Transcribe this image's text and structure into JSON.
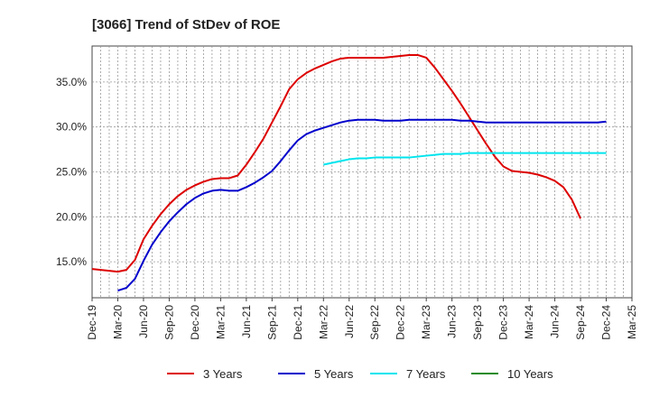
{
  "chart_data": {
    "type": "line",
    "title": "[3066]  Trend of StDev of ROE",
    "xlabel": "",
    "ylabel": "",
    "x_ticks": [
      "Dec-19",
      "Mar-20",
      "Jun-20",
      "Sep-20",
      "Dec-20",
      "Mar-21",
      "Jun-21",
      "Sep-21",
      "Dec-21",
      "Mar-22",
      "Jun-22",
      "Sep-22",
      "Dec-22",
      "Mar-23",
      "Jun-23",
      "Sep-23",
      "Dec-23",
      "Mar-24",
      "Jun-24",
      "Sep-24",
      "Dec-24",
      "Mar-25"
    ],
    "y_ticks": [
      "15.0%",
      "20.0%",
      "25.0%",
      "30.0%",
      "35.0%"
    ],
    "y_tick_values": [
      15,
      20,
      25,
      30,
      35
    ],
    "ylim": [
      11,
      39
    ],
    "x_range": [
      "Dec-19",
      "Mar-25"
    ],
    "grid": true,
    "legend_position": "bottom",
    "series": [
      {
        "name": "3 Years",
        "color": "#dd0000",
        "x": [
          "Dec-19",
          "Jan-20",
          "Feb-20",
          "Mar-20",
          "Apr-20",
          "May-20",
          "Jun-20",
          "Jul-20",
          "Aug-20",
          "Sep-20",
          "Oct-20",
          "Nov-20",
          "Dec-20",
          "Jan-21",
          "Feb-21",
          "Mar-21",
          "Apr-21",
          "May-21",
          "Jun-21",
          "Jul-21",
          "Aug-21",
          "Sep-21",
          "Oct-21",
          "Nov-21",
          "Dec-21",
          "Jan-22",
          "Feb-22",
          "Mar-22",
          "Apr-22",
          "May-22",
          "Jun-22",
          "Jul-22",
          "Aug-22",
          "Sep-22",
          "Oct-22",
          "Nov-22",
          "Dec-22",
          "Jan-23",
          "Feb-23",
          "Mar-23",
          "Apr-23",
          "May-23",
          "Jun-23",
          "Jul-23",
          "Aug-23",
          "Sep-23",
          "Oct-23",
          "Nov-23",
          "Dec-23",
          "Jan-24",
          "Feb-24",
          "Mar-24",
          "Apr-24",
          "May-24",
          "Jun-24",
          "Jul-24",
          "Aug-24",
          "Sep-24",
          "Oct-24",
          "Nov-24",
          "Dec-24"
        ],
        "values": [
          14.2,
          14.1,
          14.0,
          13.9,
          14.1,
          15.2,
          17.5,
          19.0,
          20.3,
          21.4,
          22.3,
          23.0,
          23.5,
          23.9,
          24.2,
          24.3,
          24.3,
          24.6,
          25.8,
          27.2,
          28.7,
          30.5,
          32.3,
          34.2,
          35.3,
          36.0,
          36.5,
          36.9,
          37.3,
          37.6,
          37.7,
          37.7,
          37.7,
          37.7,
          37.7,
          37.8,
          37.9,
          38.0,
          38.0,
          37.7,
          36.6,
          35.3,
          34.0,
          32.6,
          31.1,
          29.6,
          28.1,
          26.7,
          25.6,
          25.1,
          25.0,
          24.9,
          24.7,
          24.4,
          24.0,
          23.3,
          21.9,
          19.8,
          null,
          null,
          null
        ],
        "values_note": ""
      },
      {
        "name": "5 Years",
        "color": "#0000cc",
        "x": [
          "Mar-20",
          "Apr-20",
          "May-20",
          "Jun-20",
          "Jul-20",
          "Aug-20",
          "Sep-20",
          "Oct-20",
          "Nov-20",
          "Dec-20",
          "Jan-21",
          "Feb-21",
          "Mar-21",
          "Apr-21",
          "May-21",
          "Jun-21",
          "Jul-21",
          "Aug-21",
          "Sep-21",
          "Oct-21",
          "Nov-21",
          "Dec-21",
          "Jan-22",
          "Feb-22",
          "Mar-22",
          "Apr-22",
          "May-22",
          "Jun-22",
          "Jul-22",
          "Aug-22",
          "Sep-22",
          "Oct-22",
          "Nov-22",
          "Dec-22",
          "Jan-23",
          "Feb-23",
          "Mar-23",
          "Apr-23",
          "May-23",
          "Jun-23",
          "Jul-23",
          "Aug-23",
          "Sep-23",
          "Oct-23",
          "Nov-23",
          "Dec-23",
          "Jan-24",
          "Feb-24",
          "Mar-24",
          "Apr-24",
          "May-24",
          "Jun-24",
          "Jul-24",
          "Aug-24",
          "Sep-24",
          "Oct-24",
          "Nov-24",
          "Dec-24"
        ],
        "values": [
          11.8,
          12.1,
          13.1,
          15.1,
          16.9,
          18.3,
          19.5,
          20.5,
          21.4,
          22.1,
          22.6,
          22.9,
          23.0,
          22.9,
          22.9,
          23.3,
          23.8,
          24.4,
          25.1,
          26.2,
          27.4,
          28.5,
          29.2,
          29.6,
          29.9,
          30.2,
          30.5,
          30.7,
          30.8,
          30.8,
          30.8,
          30.7,
          30.7,
          30.7,
          30.8,
          30.8,
          30.8,
          30.8,
          30.8,
          30.8,
          30.7,
          30.7,
          30.6,
          30.5,
          30.5,
          30.5,
          30.5,
          30.5,
          30.5,
          30.5,
          30.5,
          30.5,
          30.5,
          30.5,
          30.5,
          30.5,
          30.5,
          30.6
        ]
      },
      {
        "name": "7 Years",
        "color": "#00e5ee",
        "x": [
          "Mar-22",
          "Apr-22",
          "May-22",
          "Jun-22",
          "Jul-22",
          "Aug-22",
          "Sep-22",
          "Oct-22",
          "Nov-22",
          "Dec-22",
          "Jan-23",
          "Feb-23",
          "Mar-23",
          "Apr-23",
          "May-23",
          "Jun-23",
          "Jul-23",
          "Aug-23",
          "Sep-23",
          "Oct-23",
          "Nov-23",
          "Dec-23",
          "Jan-24",
          "Feb-24",
          "Mar-24",
          "Apr-24",
          "May-24",
          "Jun-24",
          "Jul-24",
          "Aug-24",
          "Sep-24",
          "Oct-24",
          "Nov-24",
          "Dec-24"
        ],
        "values": [
          25.8,
          26.0,
          26.2,
          26.4,
          26.5,
          26.5,
          26.6,
          26.6,
          26.6,
          26.6,
          26.6,
          26.7,
          26.8,
          26.9,
          27.0,
          27.0,
          27.0,
          27.1,
          27.1,
          27.1,
          27.1,
          27.1,
          27.1,
          27.1,
          27.1,
          27.1,
          27.1,
          27.1,
          27.1,
          27.1,
          27.1,
          27.1,
          27.1,
          27.1
        ]
      },
      {
        "name": "10 Years",
        "color": "#228b22",
        "x": [],
        "values": []
      }
    ]
  }
}
